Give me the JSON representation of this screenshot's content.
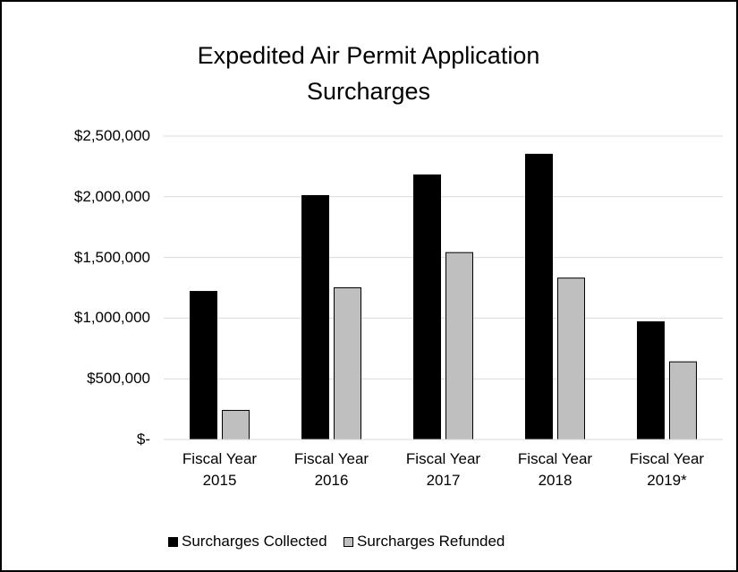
{
  "chart_data": {
    "type": "bar",
    "title": "Expedited Air Permit Application Surcharges",
    "categories": [
      "Fiscal Year 2015",
      "Fiscal Year 2016",
      "Fiscal Year 2017",
      "Fiscal Year 2018",
      "Fiscal Year 2019*"
    ],
    "series": [
      {
        "name": "Surcharges Collected",
        "color": "#000000",
        "values": [
          1220000,
          2010000,
          2180000,
          2350000,
          970000
        ]
      },
      {
        "name": "Surcharges Refunded",
        "color": "#bfbfbf",
        "values": [
          240000,
          1250000,
          1540000,
          1330000,
          640000
        ]
      }
    ],
    "ylim": [
      0,
      2500000
    ],
    "yticks": [
      {
        "value": 0,
        "label": "$-"
      },
      {
        "value": 500000,
        "label": "$500,000"
      },
      {
        "value": 1000000,
        "label": "$1,000,000"
      },
      {
        "value": 1500000,
        "label": "$1,500,000"
      },
      {
        "value": 2000000,
        "label": "$2,000,000"
      },
      {
        "value": 2500000,
        "label": "$2,500,000"
      }
    ],
    "grid": true,
    "legend": "bottom"
  }
}
